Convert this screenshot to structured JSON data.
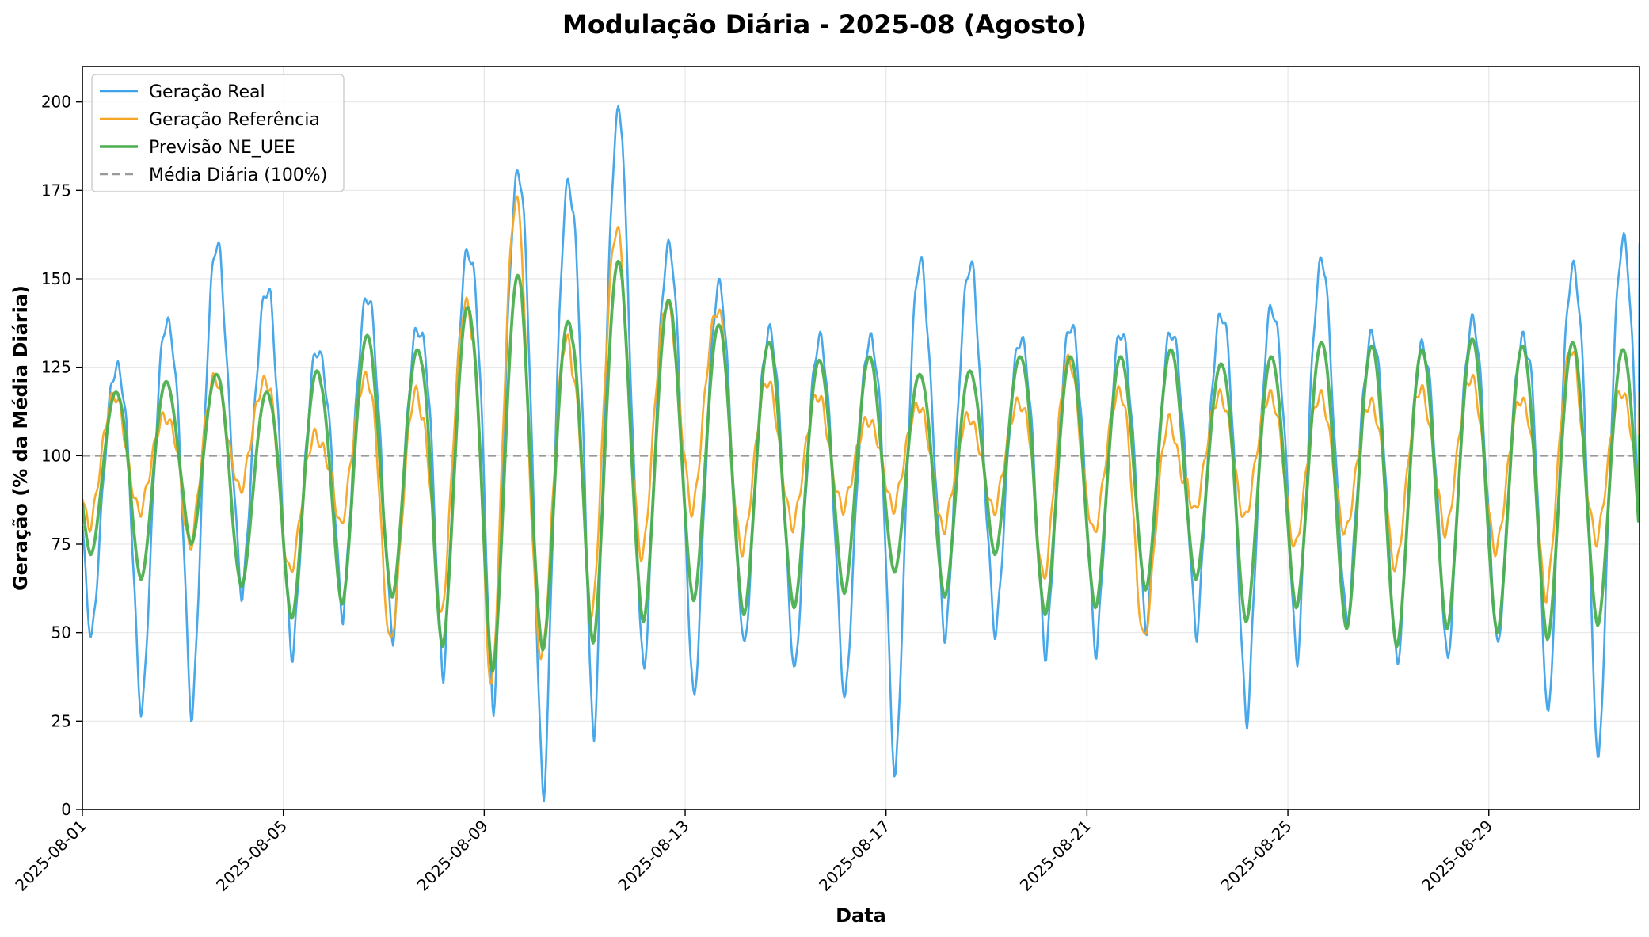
{
  "chart_data": {
    "type": "line",
    "title": "Modulação Diária - 2025-08 (Agosto)",
    "xlabel": "Data",
    "ylabel": "Geração (% da Média Diária)",
    "xlim": [
      "2025-08-01",
      "2025-09-01"
    ],
    "ylim": [
      0,
      210
    ],
    "grid": true,
    "legend": "upper-left",
    "x_ticks": [
      "2025-08-01",
      "2025-08-05",
      "2025-08-09",
      "2025-08-13",
      "2025-08-17",
      "2025-08-21",
      "2025-08-25",
      "2025-08-29"
    ],
    "y_ticks": [
      0,
      25,
      50,
      75,
      100,
      125,
      150,
      175,
      200
    ],
    "reference_line": {
      "name": "Média Diária (100%)",
      "y": 100,
      "color": "#999999"
    },
    "series": [
      {
        "name": "Geração Real",
        "color": "#3ea3e8",
        "days": [
          {
            "date": "2025-08-01",
            "min": 48,
            "max": 125
          },
          {
            "date": "2025-08-02",
            "min": 26,
            "max": 138
          },
          {
            "date": "2025-08-03",
            "min": 25,
            "max": 160
          },
          {
            "date": "2025-08-04",
            "min": 60,
            "max": 147
          },
          {
            "date": "2025-08-05",
            "min": 43,
            "max": 130
          },
          {
            "date": "2025-08-06",
            "min": 54,
            "max": 145
          },
          {
            "date": "2025-08-07",
            "min": 48,
            "max": 136
          },
          {
            "date": "2025-08-08",
            "min": 37,
            "max": 158
          },
          {
            "date": "2025-08-09",
            "min": 27,
            "max": 180
          },
          {
            "date": "2025-08-10",
            "min": 2,
            "max": 177
          },
          {
            "date": "2025-08-11",
            "min": 18,
            "max": 197
          },
          {
            "date": "2025-08-12",
            "min": 38,
            "max": 159
          },
          {
            "date": "2025-08-13",
            "min": 30,
            "max": 148
          },
          {
            "date": "2025-08-14",
            "min": 45,
            "max": 135
          },
          {
            "date": "2025-08-15",
            "min": 38,
            "max": 133
          },
          {
            "date": "2025-08-16",
            "min": 30,
            "max": 133
          },
          {
            "date": "2025-08-17",
            "min": 8,
            "max": 155
          },
          {
            "date": "2025-08-18",
            "min": 47,
            "max": 154
          },
          {
            "date": "2025-08-19",
            "min": 49,
            "max": 133
          },
          {
            "date": "2025-08-20",
            "min": 43,
            "max": 137
          },
          {
            "date": "2025-08-21",
            "min": 44,
            "max": 135
          },
          {
            "date": "2025-08-22",
            "min": 51,
            "max": 135
          },
          {
            "date": "2025-08-23",
            "min": 49,
            "max": 140
          },
          {
            "date": "2025-08-24",
            "min": 24,
            "max": 142
          },
          {
            "date": "2025-08-25",
            "min": 41,
            "max": 155
          },
          {
            "date": "2025-08-26",
            "min": 52,
            "max": 134
          },
          {
            "date": "2025-08-27",
            "min": 40,
            "max": 131
          },
          {
            "date": "2025-08-28",
            "min": 41,
            "max": 138
          },
          {
            "date": "2025-08-29",
            "min": 45,
            "max": 133
          },
          {
            "date": "2025-08-30",
            "min": 25,
            "max": 153
          },
          {
            "date": "2025-08-31",
            "min": 12,
            "max": 161
          }
        ]
      },
      {
        "name": "Geração Referência",
        "color": "#f5a623",
        "days": [
          {
            "date": "2025-08-01",
            "min": 80,
            "max": 117
          },
          {
            "date": "2025-08-02",
            "min": 84,
            "max": 111
          },
          {
            "date": "2025-08-03",
            "min": 74,
            "max": 122
          },
          {
            "date": "2025-08-04",
            "min": 90,
            "max": 121
          },
          {
            "date": "2025-08-05",
            "min": 67,
            "max": 106
          },
          {
            "date": "2025-08-06",
            "min": 80,
            "max": 122
          },
          {
            "date": "2025-08-07",
            "min": 47,
            "max": 118
          },
          {
            "date": "2025-08-08",
            "min": 54,
            "max": 143
          },
          {
            "date": "2025-08-09",
            "min": 34,
            "max": 172
          },
          {
            "date": "2025-08-10",
            "min": 42,
            "max": 133
          },
          {
            "date": "2025-08-11",
            "min": 54,
            "max": 164
          },
          {
            "date": "2025-08-12",
            "min": 71,
            "max": 143
          },
          {
            "date": "2025-08-13",
            "min": 84,
            "max": 141
          },
          {
            "date": "2025-08-14",
            "min": 73,
            "max": 121
          },
          {
            "date": "2025-08-15",
            "min": 80,
            "max": 117
          },
          {
            "date": "2025-08-16",
            "min": 85,
            "max": 110
          },
          {
            "date": "2025-08-17",
            "min": 85,
            "max": 114
          },
          {
            "date": "2025-08-18",
            "min": 79,
            "max": 111
          },
          {
            "date": "2025-08-19",
            "min": 84,
            "max": 115
          },
          {
            "date": "2025-08-20",
            "min": 65,
            "max": 127
          },
          {
            "date": "2025-08-21",
            "min": 78,
            "max": 118
          },
          {
            "date": "2025-08-22",
            "min": 48,
            "max": 110
          },
          {
            "date": "2025-08-23",
            "min": 84,
            "max": 117
          },
          {
            "date": "2025-08-24",
            "min": 82,
            "max": 117
          },
          {
            "date": "2025-08-25",
            "min": 74,
            "max": 117
          },
          {
            "date": "2025-08-26",
            "min": 78,
            "max": 115
          },
          {
            "date": "2025-08-27",
            "min": 68,
            "max": 119
          },
          {
            "date": "2025-08-28",
            "min": 78,
            "max": 122
          },
          {
            "date": "2025-08-29",
            "min": 73,
            "max": 116
          },
          {
            "date": "2025-08-30",
            "min": 60,
            "max": 130
          },
          {
            "date": "2025-08-31",
            "min": 76,
            "max": 118
          }
        ]
      },
      {
        "name": "Previsão NE_UEE",
        "color": "#4caf50",
        "days": [
          {
            "date": "2025-08-01",
            "min": 72,
            "max": 118
          },
          {
            "date": "2025-08-02",
            "min": 65,
            "max": 121
          },
          {
            "date": "2025-08-03",
            "min": 75,
            "max": 123
          },
          {
            "date": "2025-08-04",
            "min": 63,
            "max": 118
          },
          {
            "date": "2025-08-05",
            "min": 54,
            "max": 124
          },
          {
            "date": "2025-08-06",
            "min": 58,
            "max": 134
          },
          {
            "date": "2025-08-07",
            "min": 60,
            "max": 130
          },
          {
            "date": "2025-08-08",
            "min": 46,
            "max": 142
          },
          {
            "date": "2025-08-09",
            "min": 39,
            "max": 151
          },
          {
            "date": "2025-08-10",
            "min": 45,
            "max": 138
          },
          {
            "date": "2025-08-11",
            "min": 47,
            "max": 155
          },
          {
            "date": "2025-08-12",
            "min": 53,
            "max": 144
          },
          {
            "date": "2025-08-13",
            "min": 59,
            "max": 137
          },
          {
            "date": "2025-08-14",
            "min": 55,
            "max": 132
          },
          {
            "date": "2025-08-15",
            "min": 57,
            "max": 127
          },
          {
            "date": "2025-08-16",
            "min": 61,
            "max": 128
          },
          {
            "date": "2025-08-17",
            "min": 67,
            "max": 123
          },
          {
            "date": "2025-08-18",
            "min": 60,
            "max": 124
          },
          {
            "date": "2025-08-19",
            "min": 72,
            "max": 128
          },
          {
            "date": "2025-08-20",
            "min": 55,
            "max": 128
          },
          {
            "date": "2025-08-21",
            "min": 57,
            "max": 128
          },
          {
            "date": "2025-08-22",
            "min": 62,
            "max": 130
          },
          {
            "date": "2025-08-23",
            "min": 65,
            "max": 126
          },
          {
            "date": "2025-08-24",
            "min": 53,
            "max": 128
          },
          {
            "date": "2025-08-25",
            "min": 57,
            "max": 132
          },
          {
            "date": "2025-08-26",
            "min": 51,
            "max": 131
          },
          {
            "date": "2025-08-27",
            "min": 46,
            "max": 130
          },
          {
            "date": "2025-08-28",
            "min": 51,
            "max": 133
          },
          {
            "date": "2025-08-29",
            "min": 50,
            "max": 131
          },
          {
            "date": "2025-08-30",
            "min": 48,
            "max": 132
          },
          {
            "date": "2025-08-31",
            "min": 52,
            "max": 130
          }
        ]
      }
    ]
  }
}
